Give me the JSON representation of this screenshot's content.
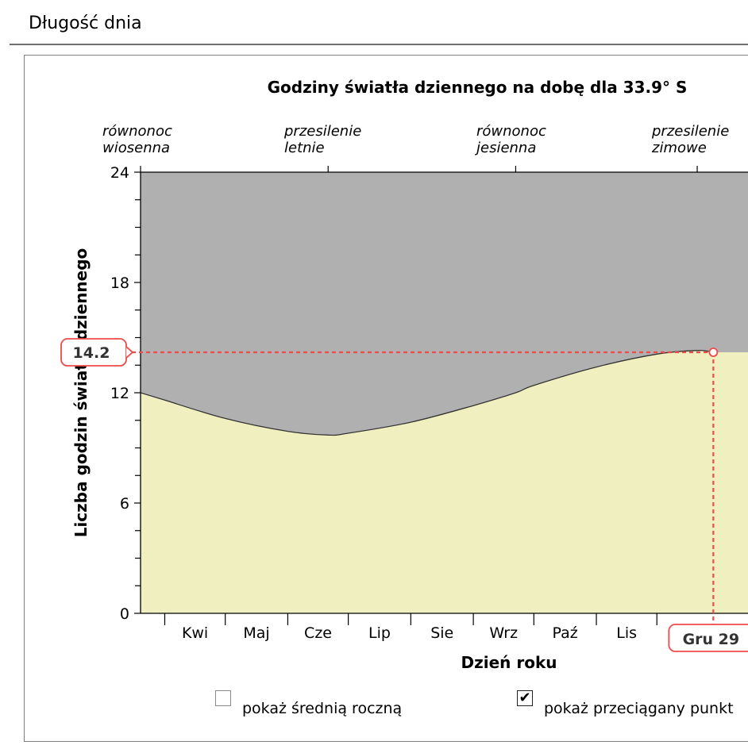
{
  "header": {
    "title": "Długość dnia"
  },
  "controls": {
    "show_average": {
      "label": "pokaż średnią roczną",
      "checked": false
    },
    "show_drag_point": {
      "label": "pokaż przeciągany punkt",
      "checked": true,
      "checkmark": "✔"
    }
  },
  "colors": {
    "day": "#f0efc0",
    "night": "#b0b0b0",
    "curve": "#333333",
    "marker": "#f04a4a"
  },
  "chart_data": {
    "type": "area",
    "title": "Godziny światła dziennego na dobę dla 33.9° S",
    "xlabel": "Dzień roku",
    "ylabel": "Liczba godzin światła dziennego",
    "ylim": [
      0,
      24
    ],
    "yticks": [
      0,
      6,
      12,
      18,
      24
    ],
    "x_months": [
      "Kwi",
      "Maj",
      "Cze",
      "Lip",
      "Sie",
      "Wrz",
      "Paź",
      "Lis"
    ],
    "latitude": "33.9° S",
    "series": [
      {
        "values": [
          {
            "day": "Mar 20",
            "hours": 12.0
          },
          {
            "day": "Kwi 1",
            "hours": 11.6
          },
          {
            "day": "Maj 1",
            "hours": 10.6
          },
          {
            "day": "Cze 1",
            "hours": 9.9
          },
          {
            "day": "Cze 21",
            "hours": 9.7
          },
          {
            "day": "Lip 1",
            "hours": 9.8
          },
          {
            "day": "Sie 1",
            "hours": 10.4
          },
          {
            "day": "Wrz 1",
            "hours": 11.3
          },
          {
            "day": "Wrz 22",
            "hours": 12.0
          },
          {
            "day": "Paź 1",
            "hours": 12.4
          },
          {
            "day": "Lis 1",
            "hours": 13.4
          },
          {
            "day": "Gru 1",
            "hours": 14.1
          },
          {
            "day": "Gru 21",
            "hours": 14.3
          },
          {
            "day": "Gru 29",
            "hours": 14.2
          }
        ]
      }
    ],
    "events": [
      {
        "label_line1": "równonoc",
        "label_line2": "wiosenna"
      },
      {
        "label_line1": "przesilenie",
        "label_line2": "letnie"
      },
      {
        "label_line1": "równonoc",
        "label_line2": "jesienna"
      },
      {
        "label_line1": "przesilenie",
        "label_line2": "zimowe"
      }
    ],
    "marker": {
      "x_label": "Gru 29",
      "y_label": "14.2",
      "hours": 14.2
    }
  }
}
